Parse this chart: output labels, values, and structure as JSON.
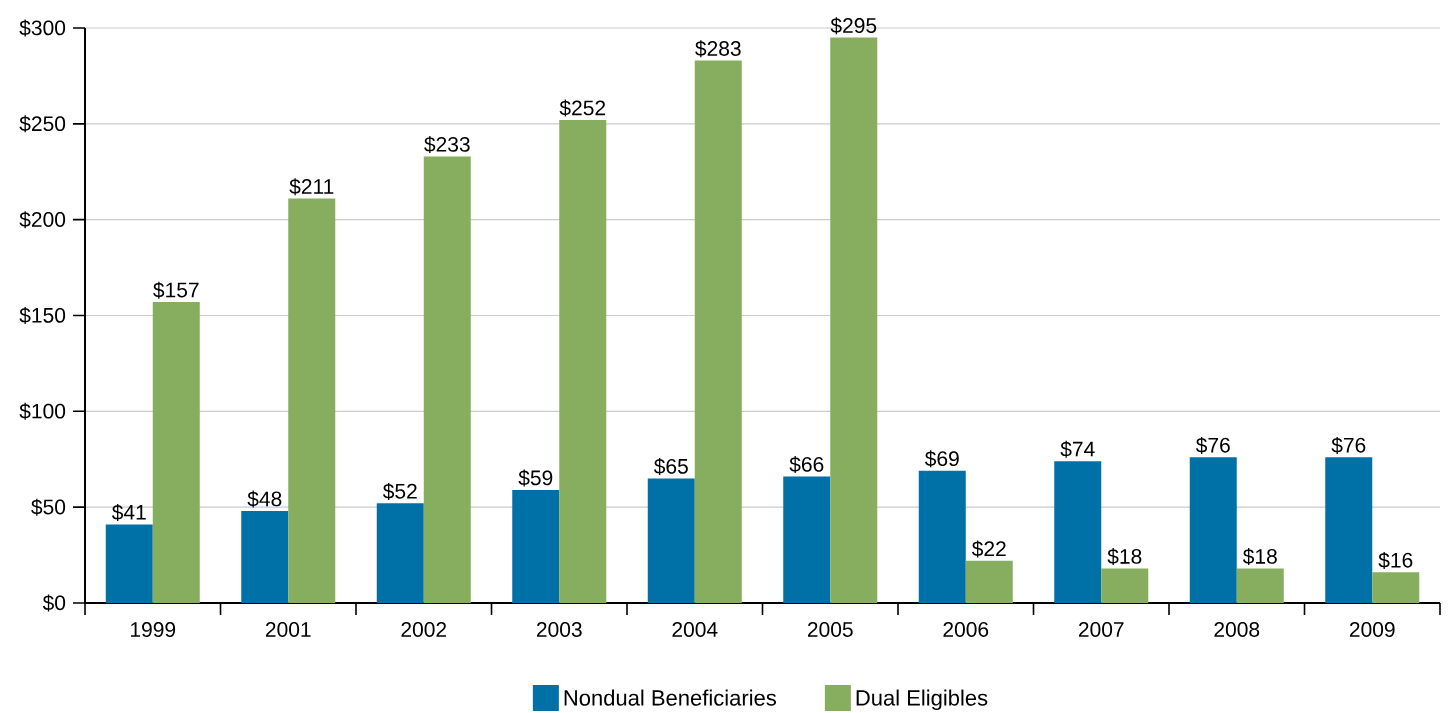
{
  "chart_data": {
    "type": "bar",
    "categories": [
      "1999",
      "2001",
      "2002",
      "2003",
      "2004",
      "2005",
      "2006",
      "2007",
      "2008",
      "2009"
    ],
    "series": [
      {
        "name": "Nondual Beneficiaries",
        "color": "#0071a6",
        "values": [
          41,
          48,
          52,
          59,
          65,
          66,
          69,
          74,
          76,
          76
        ],
        "value_labels": [
          "$41",
          "$48",
          "$52",
          "$59",
          "$65",
          "$66",
          "$69",
          "$74",
          "$76",
          "$76"
        ]
      },
      {
        "name": "Dual Eligibles",
        "color": "#87ad5f",
        "values": [
          157,
          211,
          233,
          252,
          283,
          295,
          22,
          18,
          18,
          16
        ],
        "value_labels": [
          "$157",
          "$211",
          "$233",
          "$252",
          "$283",
          "$295",
          "$22",
          "$18",
          "$18",
          "$16"
        ]
      }
    ],
    "ylim": [
      0,
      300
    ],
    "yticks": [
      {
        "value": 0,
        "label": "$0"
      },
      {
        "value": 50,
        "label": "$50"
      },
      {
        "value": 100,
        "label": "$100"
      },
      {
        "value": 150,
        "label": "$150"
      },
      {
        "value": 200,
        "label": "$200"
      },
      {
        "value": 250,
        "label": "$250"
      },
      {
        "value": 300,
        "label": "$300"
      }
    ],
    "grid": "y",
    "legend": "bottom"
  }
}
